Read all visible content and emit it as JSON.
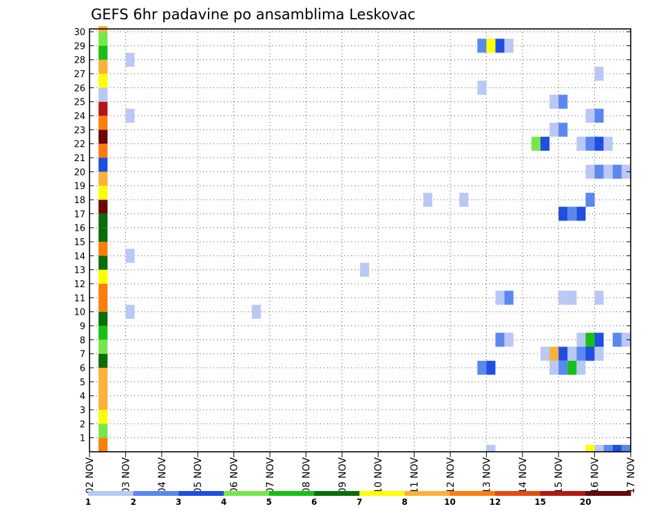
{
  "chart_data": {
    "type": "heatmap",
    "title": "GEFS 6hr padavine po ansamblima Leskovac",
    "x_tick_labels": [
      "02 NOV",
      "03 NOV",
      "04 NOV",
      "05 NOV",
      "06 NOV",
      "07 NOV",
      "08 NOV",
      "09 NOV",
      "10 NOV",
      "11 NOV",
      "12 NOV",
      "13 NOV",
      "14 NOV",
      "15 NOV",
      "16 NOV",
      "17 NOV"
    ],
    "y_tick_labels": [
      "1",
      "2",
      "3",
      "4",
      "5",
      "6",
      "7",
      "8",
      "9",
      "10",
      "11",
      "12",
      "13",
      "14",
      "15",
      "16",
      "17",
      "18",
      "19",
      "20",
      "21",
      "22",
      "23",
      "24",
      "25",
      "26",
      "27",
      "28",
      "29",
      "30"
    ],
    "x_range_days": [
      0,
      15
    ],
    "y_range": [
      0,
      30
    ],
    "time_step_hours": 6,
    "grid": "dotted",
    "legend": {
      "placement": "bottom",
      "tick_labels": [
        "1",
        "2",
        "3",
        "4",
        "5",
        "6",
        "7",
        "8",
        "10",
        "12",
        "15",
        "20"
      ],
      "colors": [
        "#b9c8f4",
        "#5a88ef",
        "#1f4fe0",
        "#74e84a",
        "#16c015",
        "#0a6e0a",
        "#ffff00",
        "#fbb13a",
        "#fb7e0c",
        "#e44b10",
        "#b51612",
        "#6a0707"
      ]
    },
    "left_strip": {
      "rows": [
        {
          "y": [
            0,
            1
          ],
          "color": "#fb7e0c"
        },
        {
          "y": [
            1,
            2
          ],
          "color": "#74e84a"
        },
        {
          "y": [
            2,
            3
          ],
          "color": "#ffff00"
        },
        {
          "y": [
            3,
            5
          ],
          "color": "#fbb13a"
        },
        {
          "y": [
            5,
            6
          ],
          "color": "#fbb13a"
        },
        {
          "y": [
            6,
            7
          ],
          "color": "#0a6e0a"
        },
        {
          "y": [
            7,
            8
          ],
          "color": "#74e84a"
        },
        {
          "y": [
            8,
            9
          ],
          "color": "#16c015"
        },
        {
          "y": [
            9,
            10
          ],
          "color": "#0a6e0a"
        },
        {
          "y": [
            10,
            12
          ],
          "color": "#fb7e0c"
        },
        {
          "y": [
            12,
            13
          ],
          "color": "#ffff00"
        },
        {
          "y": [
            13,
            14
          ],
          "color": "#0a6e0a"
        },
        {
          "y": [
            14,
            15
          ],
          "color": "#fb7e0c"
        },
        {
          "y": [
            15,
            16
          ],
          "color": "#0a6e0a"
        },
        {
          "y": [
            16,
            17
          ],
          "color": "#0a6e0a"
        },
        {
          "y": [
            17,
            18
          ],
          "color": "#6a0707"
        },
        {
          "y": [
            18,
            19
          ],
          "color": "#ffff00"
        },
        {
          "y": [
            19,
            20
          ],
          "color": "#fbb13a"
        },
        {
          "y": [
            20,
            21
          ],
          "color": "#1f4fe0"
        },
        {
          "y": [
            21,
            22
          ],
          "color": "#fb7e0c"
        },
        {
          "y": [
            22,
            23
          ],
          "color": "#6a0707"
        },
        {
          "y": [
            23,
            24
          ],
          "color": "#fb7e0c"
        },
        {
          "y": [
            24,
            25
          ],
          "color": "#b51612"
        },
        {
          "y": [
            25,
            26
          ],
          "color": "#b9c8f4"
        },
        {
          "y": [
            26,
            27
          ],
          "color": "#ffff00"
        },
        {
          "y": [
            27,
            28
          ],
          "color": "#fbb13a"
        },
        {
          "y": [
            28,
            29
          ],
          "color": "#16c015"
        },
        {
          "y": [
            29,
            30
          ],
          "color": "#74e84a"
        },
        {
          "y": [
            30,
            30.4
          ],
          "color": "#fbb13a"
        }
      ]
    },
    "cells": [
      {
        "x": 10.75,
        "y": 29,
        "color": "#5a88ef"
      },
      {
        "x": 11.0,
        "y": 29,
        "color": "#ffff00"
      },
      {
        "x": 11.25,
        "y": 29,
        "color": "#1f4fe0"
      },
      {
        "x": 11.5,
        "y": 29,
        "color": "#b9c8f4"
      },
      {
        "x": 1.0,
        "y": 28,
        "color": "#b9c8f4"
      },
      {
        "x": 14.0,
        "y": 27,
        "color": "#b9c8f4"
      },
      {
        "x": 10.75,
        "y": 26,
        "color": "#b9c8f4"
      },
      {
        "x": 12.75,
        "y": 25,
        "color": "#b9c8f4"
      },
      {
        "x": 13.0,
        "y": 25,
        "color": "#5a88ef"
      },
      {
        "x": 1.0,
        "y": 24,
        "color": "#b9c8f4"
      },
      {
        "x": 13.75,
        "y": 24,
        "color": "#b9c8f4"
      },
      {
        "x": 14.0,
        "y": 24,
        "color": "#5a88ef"
      },
      {
        "x": 12.75,
        "y": 23,
        "color": "#b9c8f4"
      },
      {
        "x": 13.0,
        "y": 23,
        "color": "#5a88ef"
      },
      {
        "x": 12.25,
        "y": 22,
        "color": "#74e84a"
      },
      {
        "x": 12.5,
        "y": 22,
        "color": "#1f4fe0"
      },
      {
        "x": 13.5,
        "y": 22,
        "color": "#b9c8f4"
      },
      {
        "x": 13.75,
        "y": 22,
        "color": "#5a88ef"
      },
      {
        "x": 14.0,
        "y": 22,
        "color": "#1f4fe0"
      },
      {
        "x": 14.25,
        "y": 22,
        "color": "#b9c8f4"
      },
      {
        "x": 13.75,
        "y": 20,
        "color": "#b9c8f4"
      },
      {
        "x": 14.0,
        "y": 20,
        "color": "#5a88ef"
      },
      {
        "x": 14.25,
        "y": 20,
        "color": "#b9c8f4"
      },
      {
        "x": 14.5,
        "y": 20,
        "color": "#5a88ef"
      },
      {
        "x": 14.75,
        "y": 20,
        "color": "#b9c8f4"
      },
      {
        "x": 9.25,
        "y": 18,
        "color": "#b9c8f4"
      },
      {
        "x": 10.25,
        "y": 18,
        "color": "#b9c8f4"
      },
      {
        "x": 13.75,
        "y": 18,
        "color": "#5a88ef"
      },
      {
        "x": 13.0,
        "y": 17,
        "color": "#1f4fe0"
      },
      {
        "x": 13.25,
        "y": 17,
        "color": "#5a88ef"
      },
      {
        "x": 13.5,
        "y": 17,
        "color": "#1f4fe0"
      },
      {
        "x": 1.0,
        "y": 14,
        "color": "#b9c8f4"
      },
      {
        "x": 7.5,
        "y": 13,
        "color": "#b9c8f4"
      },
      {
        "x": 11.25,
        "y": 11,
        "color": "#b9c8f4"
      },
      {
        "x": 11.5,
        "y": 11,
        "color": "#5a88ef"
      },
      {
        "x": 13.0,
        "y": 11,
        "color": "#b9c8f4"
      },
      {
        "x": 13.25,
        "y": 11,
        "color": "#b9c8f4"
      },
      {
        "x": 14.0,
        "y": 11,
        "color": "#b9c8f4"
      },
      {
        "x": 1.0,
        "y": 10,
        "color": "#b9c8f4"
      },
      {
        "x": 4.5,
        "y": 10,
        "color": "#b9c8f4"
      },
      {
        "x": 11.25,
        "y": 8,
        "color": "#5a88ef"
      },
      {
        "x": 11.5,
        "y": 8,
        "color": "#b9c8f4"
      },
      {
        "x": 13.5,
        "y": 8,
        "color": "#b9c8f4"
      },
      {
        "x": 13.75,
        "y": 8,
        "color": "#16c015"
      },
      {
        "x": 14.0,
        "y": 8,
        "color": "#1f4fe0"
      },
      {
        "x": 14.5,
        "y": 8,
        "color": "#5a88ef"
      },
      {
        "x": 14.75,
        "y": 8,
        "color": "#b9c8f4"
      },
      {
        "x": 12.5,
        "y": 7,
        "color": "#b9c8f4"
      },
      {
        "x": 12.75,
        "y": 7,
        "color": "#fbb13a"
      },
      {
        "x": 13.0,
        "y": 7,
        "color": "#1f4fe0"
      },
      {
        "x": 13.25,
        "y": 7,
        "color": "#b9c8f4"
      },
      {
        "x": 13.5,
        "y": 7,
        "color": "#5a88ef"
      },
      {
        "x": 13.75,
        "y": 7,
        "color": "#1f4fe0"
      },
      {
        "x": 14.0,
        "y": 7,
        "color": "#b9c8f4"
      },
      {
        "x": 10.75,
        "y": 6,
        "color": "#5a88ef"
      },
      {
        "x": 11.0,
        "y": 6,
        "color": "#1f4fe0"
      },
      {
        "x": 12.75,
        "y": 6,
        "color": "#b9c8f4"
      },
      {
        "x": 13.0,
        "y": 6,
        "color": "#5a88ef"
      },
      {
        "x": 13.25,
        "y": 6,
        "color": "#16c015"
      },
      {
        "x": 13.5,
        "y": 6,
        "color": "#b9c8f4"
      },
      {
        "x": 11.0,
        "y": 0,
        "color": "#b9c8f4"
      },
      {
        "x": 13.75,
        "y": 0,
        "color": "#ffff00"
      },
      {
        "x": 14.0,
        "y": 0,
        "color": "#b9c8f4"
      },
      {
        "x": 14.25,
        "y": 0,
        "color": "#5a88ef"
      },
      {
        "x": 14.5,
        "y": 0,
        "color": "#1f4fe0"
      },
      {
        "x": 14.75,
        "y": 0,
        "color": "#5a88ef"
      }
    ]
  }
}
